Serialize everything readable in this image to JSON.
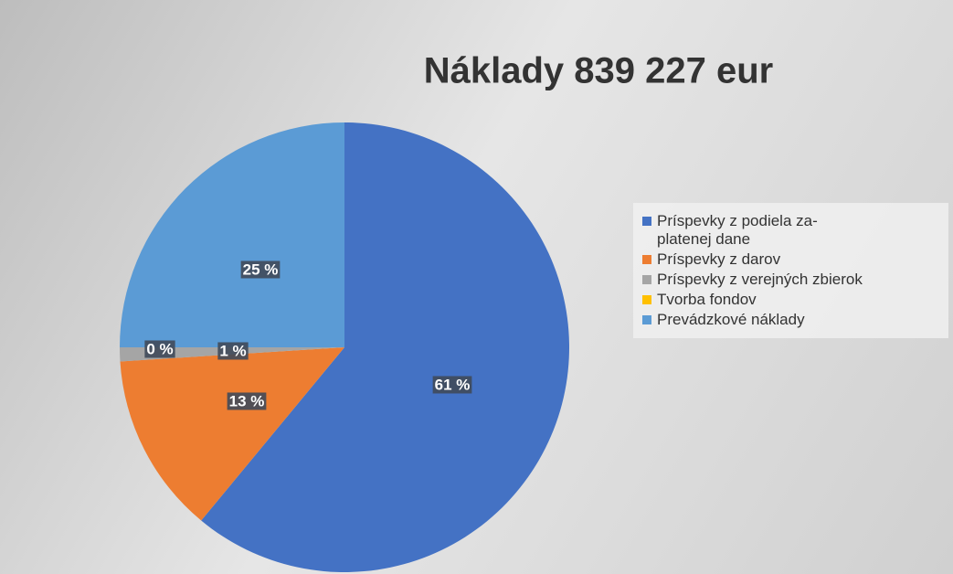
{
  "chart_data": {
    "type": "pie",
    "title": "Náklady 839 227 eur",
    "categories": [
      "Príspevky z podiela za-platenej dane",
      "Príspevky z darov",
      "Príspevky z verejných zbierok",
      "Tvorba fondov",
      "Prevádzkové náklady"
    ],
    "values": [
      61,
      13,
      1,
      0,
      25
    ],
    "value_labels": [
      "61 %",
      "13 %",
      "1 %",
      "0 %",
      "25 %"
    ],
    "colors": [
      "#4472c4",
      "#ed7d31",
      "#a5a5a5",
      "#ffc000",
      "#5b9bd5"
    ],
    "legend": "right"
  }
}
